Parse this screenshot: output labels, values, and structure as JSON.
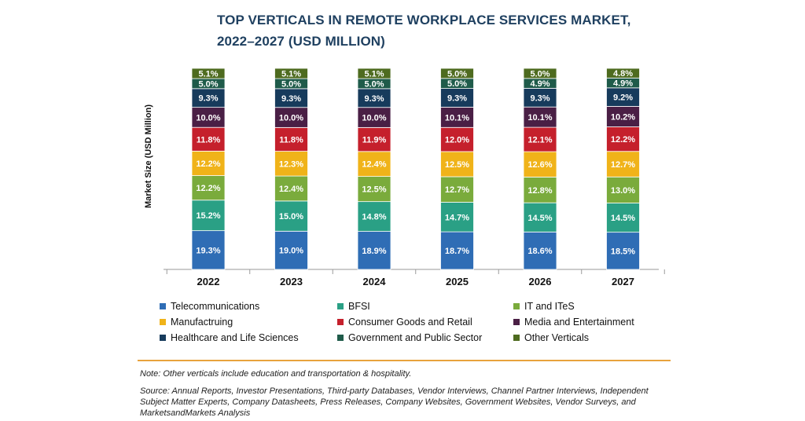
{
  "chart_data": {
    "type": "bar",
    "stacked": true,
    "title_lines": [
      "TOP VERTICALS IN REMOTE WORKPLACE SERVICES MARKET,",
      "2022–2027 (USD MILLION)"
    ],
    "ylabel": "Market Size (USD Million)",
    "categories": [
      "2022",
      "2023",
      "2024",
      "2025",
      "2026",
      "2027"
    ],
    "series": [
      {
        "name": "Telecommunications",
        "color": "#2f6db5",
        "values": [
          19.3,
          19.0,
          18.9,
          18.7,
          18.6,
          18.5
        ]
      },
      {
        "name": "BFSI",
        "color": "#2aa085",
        "values": [
          15.2,
          15.0,
          14.8,
          14.7,
          14.5,
          14.5
        ]
      },
      {
        "name": "IT and ITeS",
        "color": "#7aab3c",
        "values": [
          12.2,
          12.4,
          12.5,
          12.7,
          12.8,
          13.0
        ]
      },
      {
        "name": "Manufactruing",
        "color": "#f0b319",
        "values": [
          12.2,
          12.3,
          12.4,
          12.5,
          12.6,
          12.7
        ]
      },
      {
        "name": "Consumer Goods and Retail",
        "color": "#c5202c",
        "values": [
          11.8,
          11.8,
          11.9,
          12.0,
          12.1,
          12.2
        ]
      },
      {
        "name": "Media and Entertainment",
        "color": "#4a1f45",
        "values": [
          10.0,
          10.0,
          10.0,
          10.1,
          10.1,
          10.2
        ]
      },
      {
        "name": "Healthcare and Life Sciences",
        "color": "#173b5c",
        "values": [
          9.3,
          9.3,
          9.3,
          9.3,
          9.3,
          9.2
        ]
      },
      {
        "name": "Government and Public Sector",
        "color": "#1f5b4a",
        "values": [
          5.0,
          5.0,
          5.0,
          5.0,
          4.9,
          4.9
        ]
      },
      {
        "name": "Other Verticals",
        "color": "#4e6b1f",
        "values": [
          5.1,
          5.1,
          5.1,
          5.0,
          5.0,
          4.8
        ]
      }
    ],
    "value_suffix": "%",
    "legend_position": "bottom",
    "grid": false
  },
  "note": "Note: Other verticals include education and transportation & hospitality.",
  "source": "Source: Annual Reports, Investor Presentations, Third-party Databases, Vendor Interviews, Channel Partner Interviews, Independent Subject Matter Experts, Company Datasheets, Press Releases, Company Websites, Government Websites, Vendor Surveys, and MarketsandMarkets Analysis",
  "colors": {
    "accent_rule": "#e8a33c",
    "title": "#1f4060"
  }
}
